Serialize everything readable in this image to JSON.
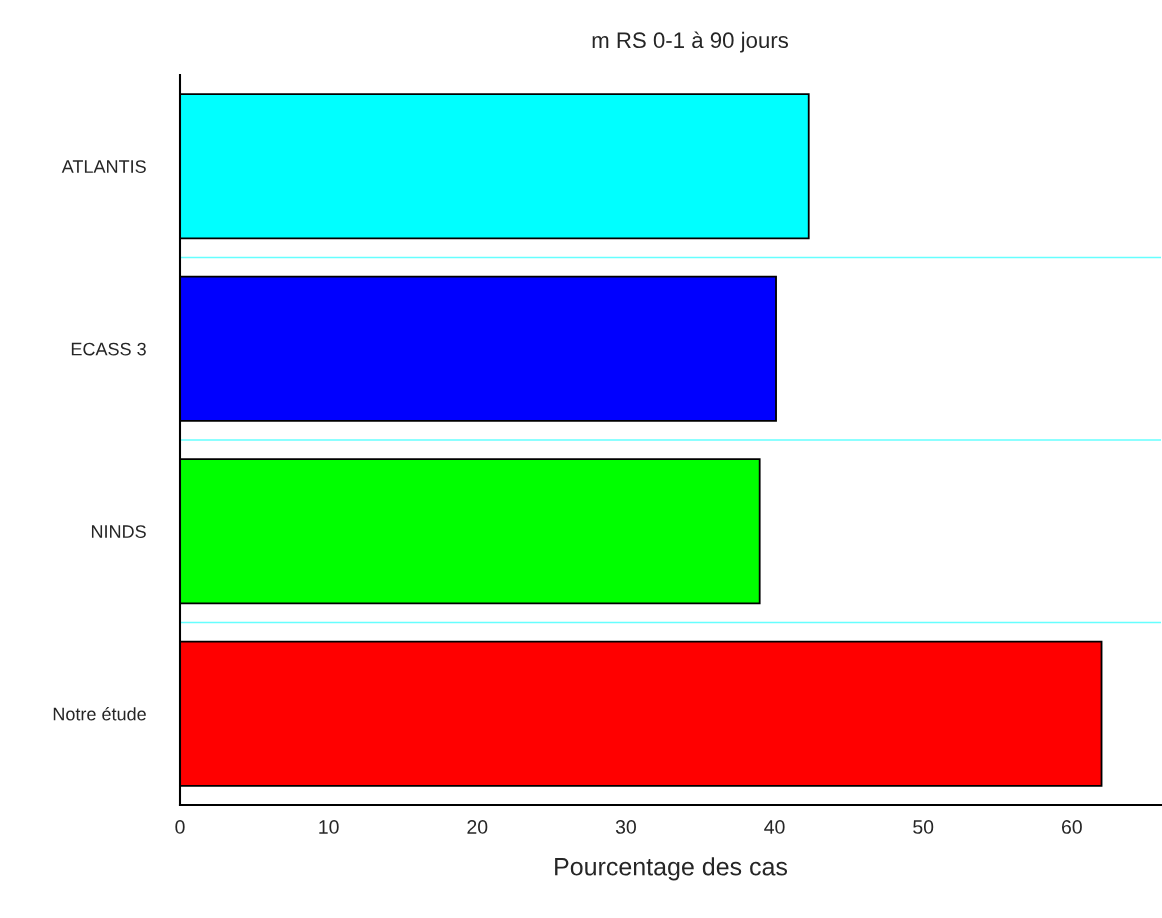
{
  "chart_data": {
    "type": "bar",
    "orientation": "horizontal",
    "title": "m RS 0-1 à 90 jours",
    "xlabel": "Pourcentage des cas",
    "categories": [
      "ATLANTIS",
      "ECASS 3",
      "NINDS",
      "Notre étude"
    ],
    "values": [
      42.3,
      40.1,
      39.0,
      62.0
    ],
    "colors": [
      "#00ffff",
      "#0000ff",
      "#00ff00",
      "#ff0000"
    ],
    "xlim": [
      0,
      66
    ],
    "xticks": [
      0,
      10,
      20,
      30,
      40,
      50,
      60
    ],
    "grid": "y"
  }
}
